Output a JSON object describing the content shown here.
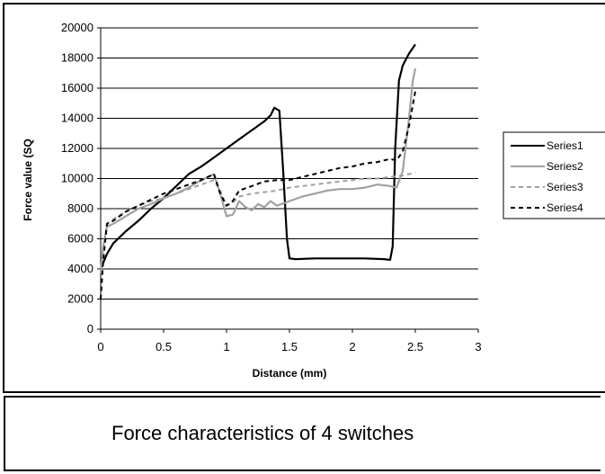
{
  "caption": "Force characteristics of 4 switches",
  "chart_data": {
    "type": "line",
    "title": "",
    "xlabel": "Distance (mm)",
    "ylabel": "Force value (SQ",
    "xlim": [
      0,
      3
    ],
    "ylim": [
      0,
      20000
    ],
    "xticks": [
      "0",
      "0.5",
      "1",
      "1.5",
      "2",
      "2.5",
      "3"
    ],
    "yticks": [
      "0",
      "2000",
      "4000",
      "6000",
      "8000",
      "10000",
      "12000",
      "14000",
      "16000",
      "18000",
      "20000"
    ],
    "grid": "horizontal",
    "legend_position": "right",
    "series": [
      {
        "name": "Series1",
        "color": "#000000",
        "style": "solid",
        "x": [
          0,
          0.02,
          0.05,
          0.1,
          0.15,
          0.2,
          0.3,
          0.4,
          0.5,
          0.6,
          0.7,
          0.8,
          0.9,
          1.0,
          1.1,
          1.2,
          1.3,
          1.35,
          1.38,
          1.42,
          1.45,
          1.48,
          1.5,
          1.55,
          1.7,
          1.9,
          2.1,
          2.25,
          2.3,
          2.32,
          2.34,
          2.37,
          2.4,
          2.45,
          2.5
        ],
        "y": [
          4000,
          4400,
          5000,
          5700,
          6100,
          6500,
          7200,
          8000,
          8700,
          9500,
          10300,
          10800,
          11400,
          12000,
          12600,
          13200,
          13800,
          14200,
          14700,
          14500,
          10500,
          6000,
          4700,
          4650,
          4700,
          4700,
          4700,
          4650,
          4600,
          5500,
          12000,
          16500,
          17500,
          18300,
          18900
        ]
      },
      {
        "name": "Series2",
        "color": "#a0a0a0",
        "style": "solid",
        "x": [
          0,
          0.02,
          0.05,
          0.1,
          0.2,
          0.3,
          0.4,
          0.5,
          0.6,
          0.7,
          0.8,
          0.9,
          0.95,
          1.0,
          1.05,
          1.1,
          1.15,
          1.2,
          1.25,
          1.3,
          1.35,
          1.4,
          1.5,
          1.6,
          1.7,
          1.8,
          1.9,
          2.0,
          2.1,
          2.2,
          2.3,
          2.35,
          2.4,
          2.45,
          2.48,
          2.5
        ],
        "y": [
          3800,
          5500,
          6800,
          7000,
          7500,
          8000,
          8300,
          8700,
          9000,
          9400,
          9900,
          10300,
          9000,
          7500,
          7600,
          8500,
          8100,
          7900,
          8300,
          8100,
          8500,
          8200,
          8500,
          8800,
          9000,
          9200,
          9300,
          9300,
          9400,
          9600,
          9500,
          9400,
          10500,
          14000,
          16500,
          17300
        ]
      },
      {
        "name": "Series3",
        "color": "#a0a0a0",
        "style": "dashed",
        "x": [
          0,
          0.02,
          0.05,
          0.1,
          0.2,
          0.3,
          0.4,
          0.5,
          0.6,
          0.7,
          0.8,
          0.9,
          0.95,
          1.0,
          1.05,
          1.1,
          1.2,
          1.3,
          1.4,
          1.5,
          1.6,
          1.7,
          1.8,
          1.9,
          2.0,
          2.1,
          2.2,
          2.3,
          2.4,
          2.45,
          2.5
        ],
        "y": [
          3700,
          5200,
          7000,
          7300,
          7800,
          8200,
          8500,
          8700,
          9000,
          9300,
          9600,
          9900,
          9200,
          8200,
          8400,
          8800,
          9000,
          9100,
          9200,
          9400,
          9500,
          9600,
          9700,
          9800,
          9900,
          10000,
          10000,
          10100,
          10200,
          10300,
          10400
        ]
      },
      {
        "name": "Series4",
        "color": "#000000",
        "style": "dashed",
        "x": [
          0,
          0.02,
          0.05,
          0.1,
          0.2,
          0.3,
          0.4,
          0.5,
          0.6,
          0.7,
          0.8,
          0.9,
          0.95,
          1.0,
          1.05,
          1.1,
          1.2,
          1.3,
          1.4,
          1.5,
          1.6,
          1.7,
          1.8,
          1.9,
          2.0,
          2.1,
          2.2,
          2.3,
          2.35,
          2.4,
          2.45,
          2.5
        ],
        "y": [
          2000,
          4500,
          7000,
          7200,
          7800,
          8200,
          8600,
          9000,
          9300,
          9600,
          9900,
          10300,
          9000,
          8200,
          8500,
          9200,
          9500,
          9800,
          9900,
          9900,
          10100,
          10300,
          10500,
          10700,
          10800,
          11000,
          11100,
          11300,
          11200,
          11800,
          13500,
          15800
        ]
      }
    ]
  }
}
